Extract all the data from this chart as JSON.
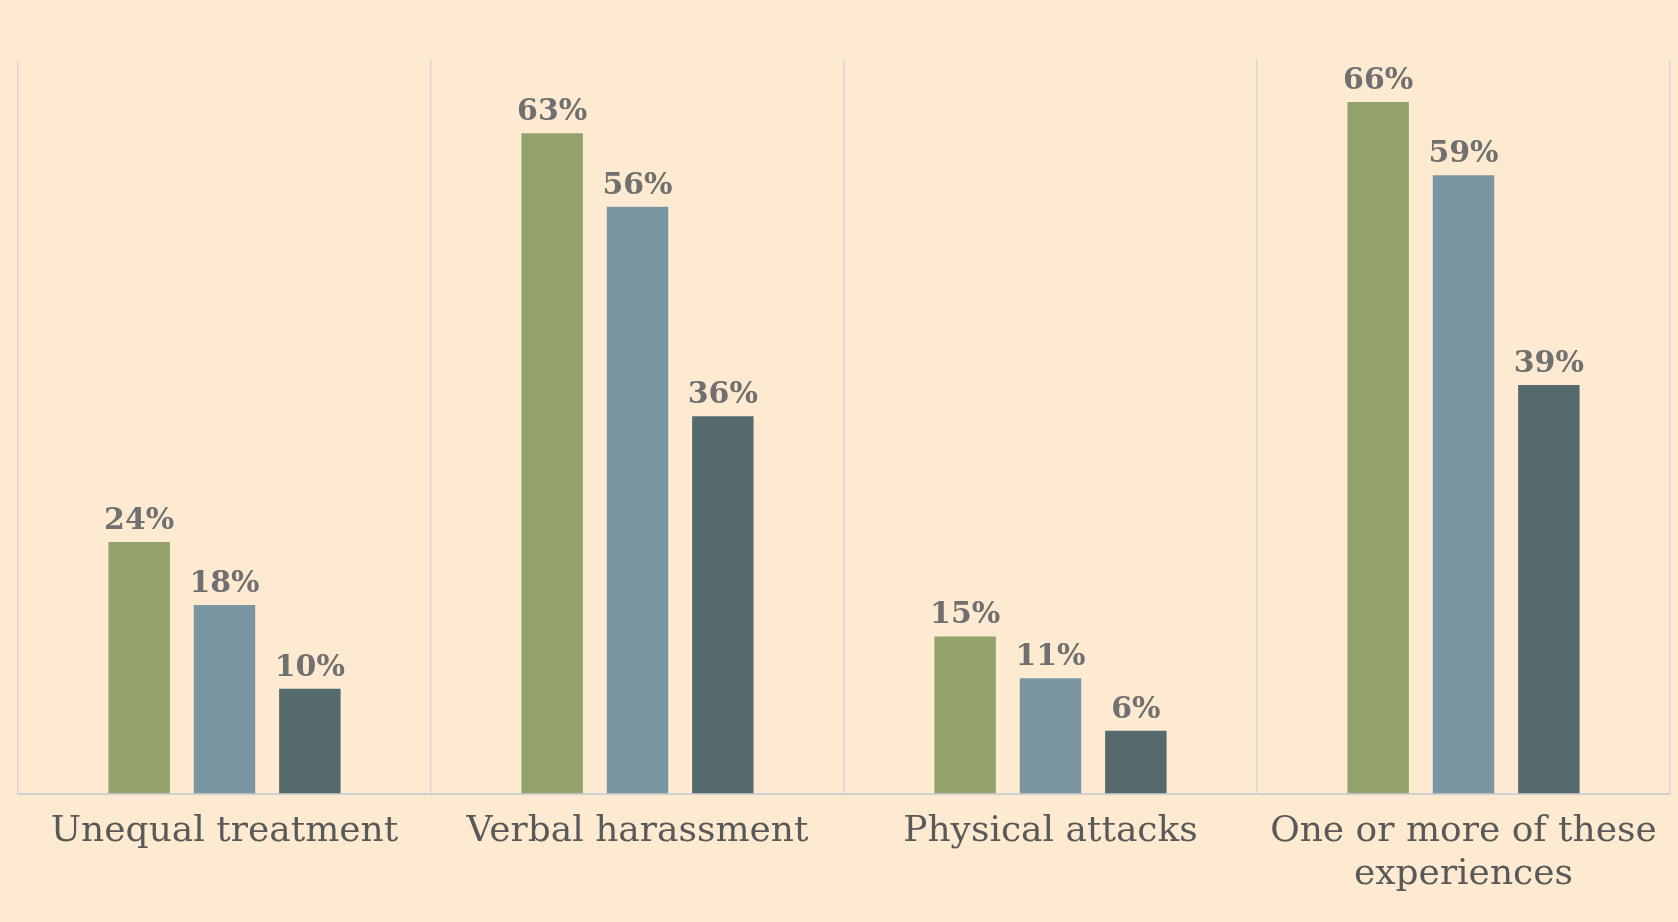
{
  "chart_data": {
    "type": "bar",
    "categories": [
      "Unequal treatment",
      "Verbal harassment",
      "Physical attacks",
      "One or more of these experiences"
    ],
    "series": [
      {
        "color": "#93a26a",
        "values": [
          24,
          63,
          15,
          66
        ],
        "value_labels": [
          "24%",
          "63%",
          "15%",
          "66%"
        ]
      },
      {
        "color": "#7b96a3",
        "values": [
          18,
          56,
          11,
          59
        ],
        "value_labels": [
          "18%",
          "56%",
          "11%",
          "59%"
        ]
      },
      {
        "color": "#546a6d",
        "values": [
          10,
          36,
          6,
          39
        ],
        "value_labels": [
          "10%",
          "36%",
          "6%",
          "39%"
        ]
      }
    ],
    "grid": "x",
    "legend": false
  }
}
